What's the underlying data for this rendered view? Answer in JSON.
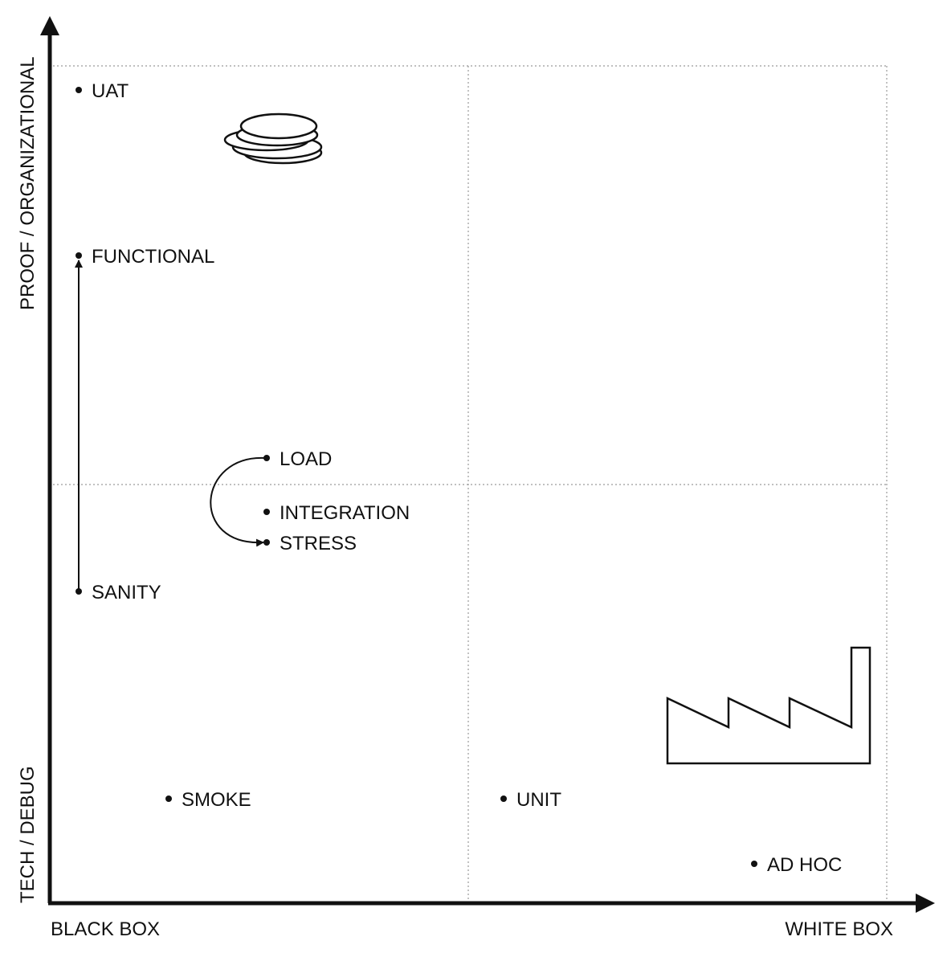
{
  "axes": {
    "x_left_label": "BLACK BOX",
    "x_right_label": "WHITE BOX",
    "y_top_label": "PROOF / ORGANIZATIONAL",
    "y_bottom_label": "TECH / DEBUG"
  },
  "points": {
    "uat": "UAT",
    "functional": "FUNCTIONAL",
    "load": "LOAD",
    "integration": "INTEGRATION",
    "stress": "STRESS",
    "sanity": "SANITY",
    "smoke": "SMOKE",
    "unit": "UNIT",
    "ad_hoc": "AD HOC"
  },
  "icons": {
    "top_left": "coin-stack-icon",
    "bottom_right": "factory-icon"
  },
  "colors": {
    "ink": "#111111",
    "grid": "#9a9a9a"
  }
}
